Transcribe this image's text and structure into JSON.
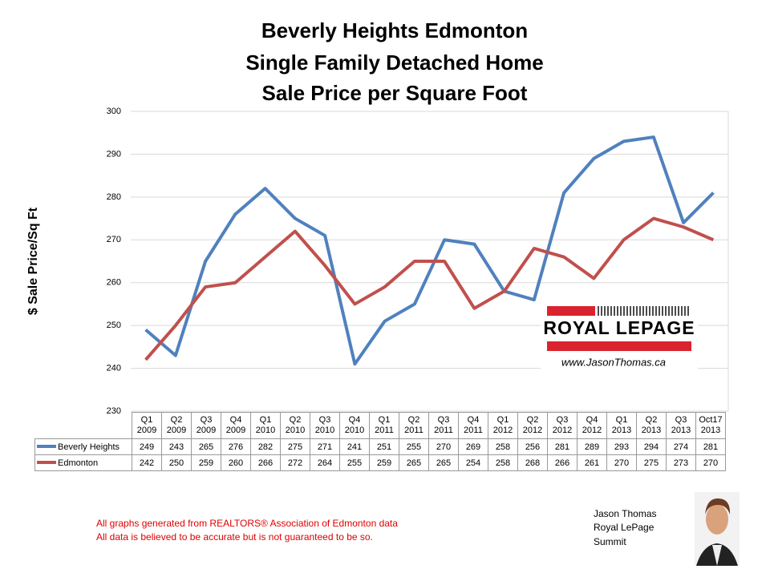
{
  "chart_data": {
    "type": "line",
    "title": [
      "Beverly Heights Edmonton",
      "Single Family Detached Home",
      "Sale Price per Square Foot"
    ],
    "y_label": "$ Sale Price/Sq Ft",
    "categories": [
      "Q1 2009",
      "Q2 2009",
      "Q3 2009",
      "Q4 2009",
      "Q1 2010",
      "Q2 2010",
      "Q3 2010",
      "Q4 2010",
      "Q1 2011",
      "Q2 2011",
      "Q3 2011",
      "Q4 2011",
      "Q1 2012",
      "Q2 2012",
      "Q3 2012",
      "Q4 2012",
      "Q1 2013",
      "Q2 2013",
      "Q3 2013",
      "Oct17 2013"
    ],
    "series": [
      {
        "name": "Beverly Heights",
        "color": "#4f81bd",
        "values": [
          249,
          243,
          265,
          276,
          282,
          275,
          271,
          241,
          251,
          255,
          270,
          269,
          258,
          256,
          281,
          289,
          293,
          294,
          274,
          281
        ]
      },
      {
        "name": "Edmonton",
        "color": "#c0504d",
        "values": [
          242,
          250,
          259,
          260,
          266,
          272,
          264,
          255,
          259,
          265,
          265,
          254,
          258,
          268,
          266,
          261,
          270,
          275,
          273,
          270
        ]
      }
    ],
    "ylim": [
      230,
      300
    ],
    "yticks": [
      230,
      240,
      250,
      260,
      270,
      280,
      290,
      300
    ],
    "grid": true
  },
  "logo": {
    "brand": "ROYAL LEPAGE",
    "url": "www.JasonThomas.ca"
  },
  "notes": [
    "All graphs generated from REALTORS® Association of Edmonton data",
    "All data is believed to be accurate but is not guaranteed to be so."
  ],
  "agent": [
    "Jason Thomas",
    "Royal LePage",
    "Summit"
  ]
}
